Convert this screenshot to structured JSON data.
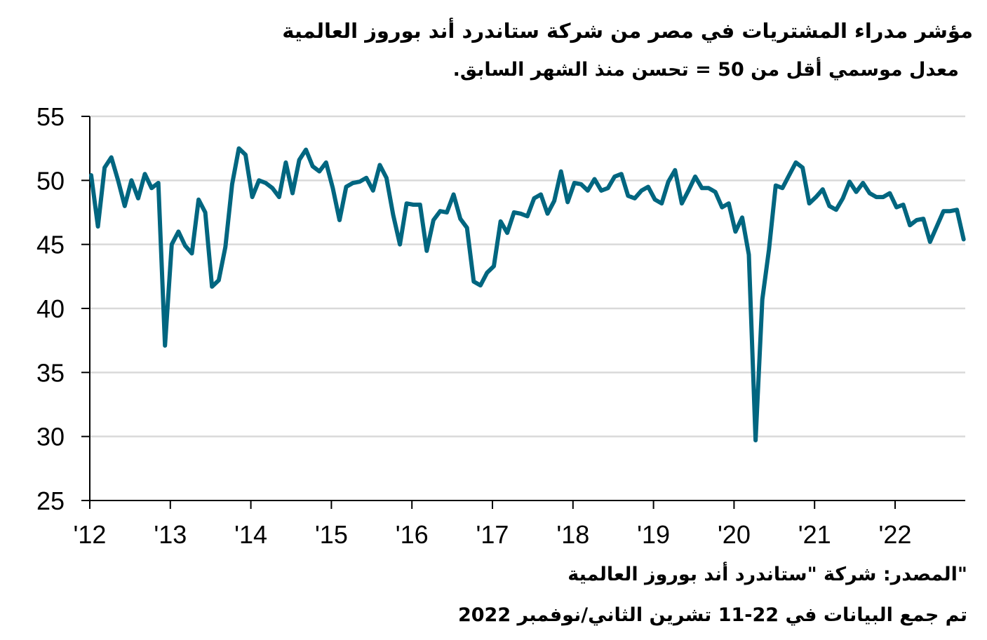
{
  "title": "مؤشر مدراء المشتريات في مصر من شركة ستاندرد أند بوروز العالمية",
  "subtitle": "معدل موسمي أقل من 50 = تحسن منذ الشهر السابق.",
  "source": "\"المصدر: شركة \"ستاندرد أند بوروز العالمية",
  "collected": "تم جمع البيانات في 22-11 تشرين الثاني/نوفمبر 2022",
  "colors": {
    "series": "#006680",
    "grid": "#d9d9d9",
    "axis": "#000000"
  },
  "chart_data": {
    "type": "line",
    "title": "مؤشر مدراء المشتريات في مصر من شركة ستاندرد أند بوروز العالمية",
    "ylim": [
      25,
      55
    ],
    "yticks": [
      25,
      30,
      35,
      40,
      45,
      50,
      55
    ],
    "xticks": [
      "'12",
      "'13",
      "'14",
      "'15",
      "'16",
      "'17",
      "'18",
      "'19",
      "'20",
      "'21",
      "'22"
    ],
    "grid": "horizontal",
    "x_start": "2012-01",
    "x_end": "2022-11",
    "series": [
      {
        "values": [
          50.4,
          46.4,
          51.0,
          51.8,
          50.0,
          48.0,
          50.0,
          48.6,
          50.5,
          49.4,
          49.8,
          37.1,
          45.0,
          46.0,
          44.9,
          44.3,
          48.5,
          47.5,
          41.7,
          42.2,
          44.8,
          49.7,
          52.5,
          52.0,
          48.7,
          50.0,
          49.8,
          49.4,
          48.7,
          51.4,
          49.0,
          51.6,
          52.4,
          51.1,
          50.7,
          51.4,
          49.4,
          46.9,
          49.5,
          49.8,
          49.9,
          50.2,
          49.2,
          51.2,
          50.2,
          47.3,
          45.0,
          48.2,
          48.1,
          48.1,
          44.5,
          46.9,
          47.6,
          47.5,
          48.9,
          47.0,
          46.3,
          42.1,
          41.8,
          42.8,
          43.3,
          46.8,
          45.9,
          47.5,
          47.4,
          47.2,
          48.6,
          48.9,
          47.4,
          48.4,
          50.7,
          48.3,
          49.8,
          49.7,
          49.2,
          50.1,
          49.2,
          49.4,
          50.3,
          50.5,
          48.8,
          48.6,
          49.2,
          49.5,
          48.5,
          48.2,
          49.9,
          50.8,
          48.2,
          49.2,
          50.3,
          49.4,
          49.4,
          49.1,
          47.9,
          48.2,
          46.0,
          47.1,
          44.2,
          29.7,
          40.7,
          44.6,
          49.6,
          49.4,
          50.4,
          51.4,
          51.0,
          48.2,
          48.7,
          49.3,
          48.0,
          47.7,
          48.6,
          49.9,
          49.1,
          49.8,
          49.0,
          48.7,
          48.7,
          49.0,
          47.9,
          48.1,
          46.5,
          46.9,
          47.0,
          45.2,
          46.4,
          47.6,
          47.6,
          47.7,
          45.4
        ]
      }
    ]
  }
}
